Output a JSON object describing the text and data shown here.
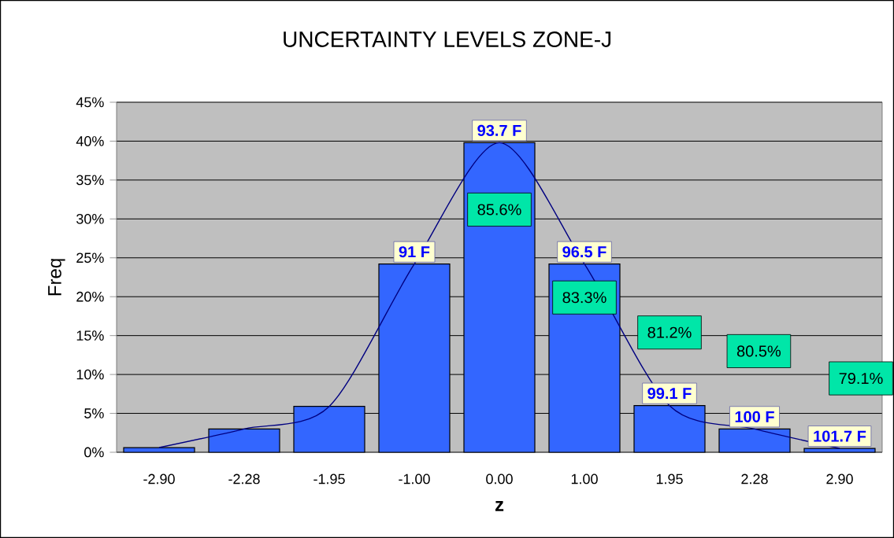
{
  "chart_data": {
    "type": "bar",
    "title": "UNCERTAINTY LEVELS ZONE-J",
    "xlabel": "z",
    "ylabel": "Freq",
    "categories": [
      "-2.90",
      "-2.28",
      "-1.95",
      "-1.00",
      "0.00",
      "1.00",
      "1.95",
      "2.28",
      "2.90"
    ],
    "series": [
      {
        "color": "#3366ff",
        "values": [
          0.6,
          3.0,
          5.9,
          24.2,
          39.8,
          24.2,
          6.0,
          3.0,
          0.5
        ]
      },
      {
        "type": "line",
        "color": "#000080",
        "values": [
          0.6,
          3.0,
          5.9,
          24.2,
          39.8,
          24.2,
          6.0,
          3.0,
          0.5
        ]
      }
    ],
    "ylim": [
      0,
      45
    ],
    "yticks": [
      {
        "value": 0,
        "label": "0%"
      },
      {
        "value": 5,
        "label": "5%"
      },
      {
        "value": 10,
        "label": "10%"
      },
      {
        "value": 15,
        "label": "15%"
      },
      {
        "value": 20,
        "label": "20%"
      },
      {
        "value": 25,
        "label": "25%"
      },
      {
        "value": 30,
        "label": "30%"
      },
      {
        "value": 35,
        "label": "35%"
      },
      {
        "value": 40,
        "label": "40%"
      },
      {
        "value": 45,
        "label": "45%"
      }
    ],
    "grid": "y",
    "annotations": [
      {
        "text": "91 F",
        "x": "-1.00",
        "y": 24.2
      },
      {
        "text": "93.7 F",
        "x": "0.00",
        "y": 39.8
      },
      {
        "text": "96.5 F",
        "x": "1.00",
        "y": 24.2
      },
      {
        "text": "99.1 F",
        "x": "1.95",
        "y": 6.0
      },
      {
        "text": "100 F",
        "x": "2.28",
        "y": 3.0
      },
      {
        "text": "101.7 F",
        "x": "2.90",
        "y": 0.5
      },
      "85.6%",
      "83.3%",
      "81.2%",
      "80.5%",
      "79.1%"
    ]
  }
}
